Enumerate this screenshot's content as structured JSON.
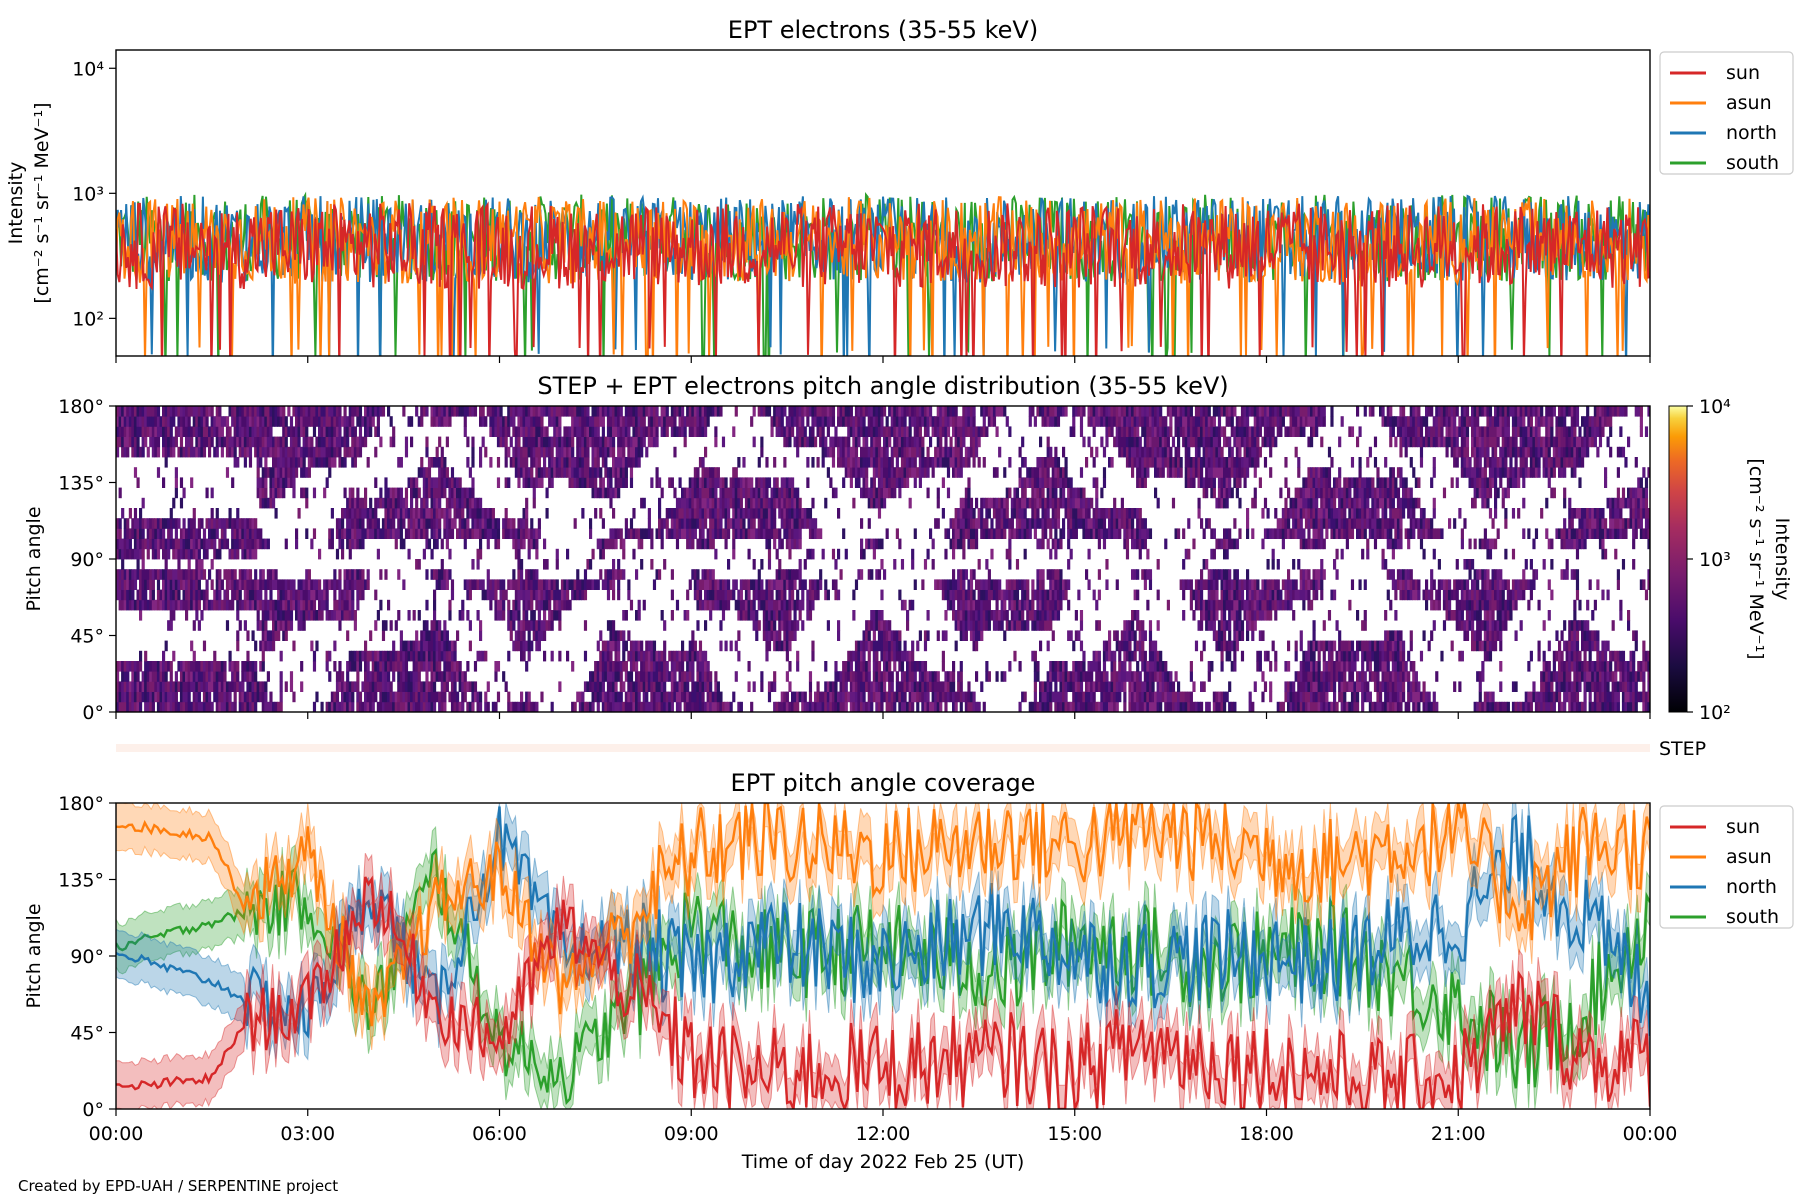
{
  "footer": "Created by EPD-UAH / SERPENTINE project",
  "colors": {
    "sun": "#d62728",
    "asun": "#ff7f0e",
    "north": "#1f77b4",
    "south": "#2ca02c",
    "step_band": "#fdf0ea"
  },
  "chart_data": [
    {
      "id": "intensity",
      "type": "line",
      "title": "EPT electrons (35-55 keV)",
      "ylabel": "Intensity",
      "yunit": "[cm⁻² s⁻¹ sr⁻¹ MeV⁻¹]",
      "yscale": "log",
      "ylim": [
        50,
        14000
      ],
      "yticks": [
        "10²",
        "10³",
        "10⁴"
      ],
      "ytick_values": [
        100,
        1000,
        10000
      ],
      "xlim": [
        "2022-02-25 00:00",
        "2022-02-26 00:00"
      ],
      "legend": "upper-right-outside",
      "series": [
        {
          "name": "sun",
          "typical": 380,
          "range": [
            50,
            900
          ]
        },
        {
          "name": "asun",
          "typical": 420,
          "range": [
            50,
            1000
          ]
        },
        {
          "name": "north",
          "typical": 430,
          "range": [
            50,
            950
          ]
        },
        {
          "name": "south",
          "typical": 440,
          "range": [
            50,
            1250
          ]
        }
      ]
    },
    {
      "id": "pad",
      "type": "heatmap",
      "title": "STEP + EPT electrons pitch angle distribution (35-55 keV)",
      "ylabel": "Pitch angle",
      "yticks": [
        "0°",
        "45°",
        "90°",
        "135°",
        "180°"
      ],
      "ylim": [
        0,
        180
      ],
      "colorbar": {
        "label": "Intensity",
        "unit": "[cm⁻² s⁻¹ sr⁻¹ MeV⁻¹]",
        "scale": "log",
        "range": [
          100,
          10000
        ],
        "ticks": [
          "10²",
          "10³",
          "10⁴"
        ],
        "colormap": "inferno"
      },
      "step_label": "STEP"
    },
    {
      "id": "coverage",
      "type": "line",
      "title": "EPT pitch angle coverage",
      "ylabel": "Pitch angle",
      "xlabel": "Time of day 2022 Feb 25 (UT)",
      "ylim": [
        0,
        180
      ],
      "yticks": [
        "0°",
        "45°",
        "90°",
        "135°",
        "180°"
      ],
      "xticks": [
        "00:00",
        "03:00",
        "06:00",
        "09:00",
        "12:00",
        "15:00",
        "18:00",
        "21:00",
        "00:00"
      ],
      "legend": "upper-right-outside",
      "series": [
        {
          "name": "sun",
          "x_hours": [
            0,
            1.5,
            2,
            3,
            4,
            5,
            6,
            7,
            8,
            9,
            10,
            12,
            14,
            15,
            16,
            17,
            18,
            19,
            20,
            21,
            22,
            23,
            24
          ],
          "y": [
            12,
            18,
            50,
            60,
            130,
            60,
            40,
            110,
            70,
            30,
            20,
            25,
            30,
            20,
            40,
            30,
            25,
            20,
            15,
            20,
            60,
            30,
            28
          ]
        },
        {
          "name": "asun",
          "x_hours": [
            0,
            1.5,
            2,
            3,
            4,
            5,
            6,
            7,
            8,
            9,
            10,
            12,
            14,
            15,
            16,
            17,
            18,
            19,
            20,
            21,
            22,
            23,
            24
          ],
          "y": [
            168,
            160,
            120,
            150,
            50,
            120,
            140,
            70,
            110,
            150,
            160,
            150,
            160,
            155,
            165,
            160,
            150,
            145,
            155,
            160,
            120,
            155,
            155
          ]
        },
        {
          "name": "north",
          "x_hours": [
            0,
            1.5,
            2,
            3,
            4,
            5,
            6,
            7,
            8,
            9,
            10,
            12,
            14,
            15,
            16,
            17,
            18,
            19,
            20,
            21,
            22,
            23,
            24
          ],
          "y": [
            92,
            75,
            65,
            55,
            130,
            60,
            160,
            90,
            100,
            80,
            100,
            85,
            110,
            90,
            85,
            90,
            90,
            85,
            100,
            110,
            150,
            110,
            65
          ]
        },
        {
          "name": "south",
          "x_hours": [
            0,
            1.5,
            2,
            3,
            4,
            5,
            6,
            7,
            8,
            9,
            10,
            12,
            14,
            15,
            16,
            17,
            18,
            19,
            20,
            21,
            22,
            23,
            24
          ],
          "y": [
            95,
            110,
            115,
            125,
            55,
            140,
            40,
            20,
            60,
            110,
            90,
            95,
            80,
            100,
            95,
            85,
            90,
            95,
            80,
            60,
            30,
            60,
            115
          ]
        }
      ]
    }
  ]
}
